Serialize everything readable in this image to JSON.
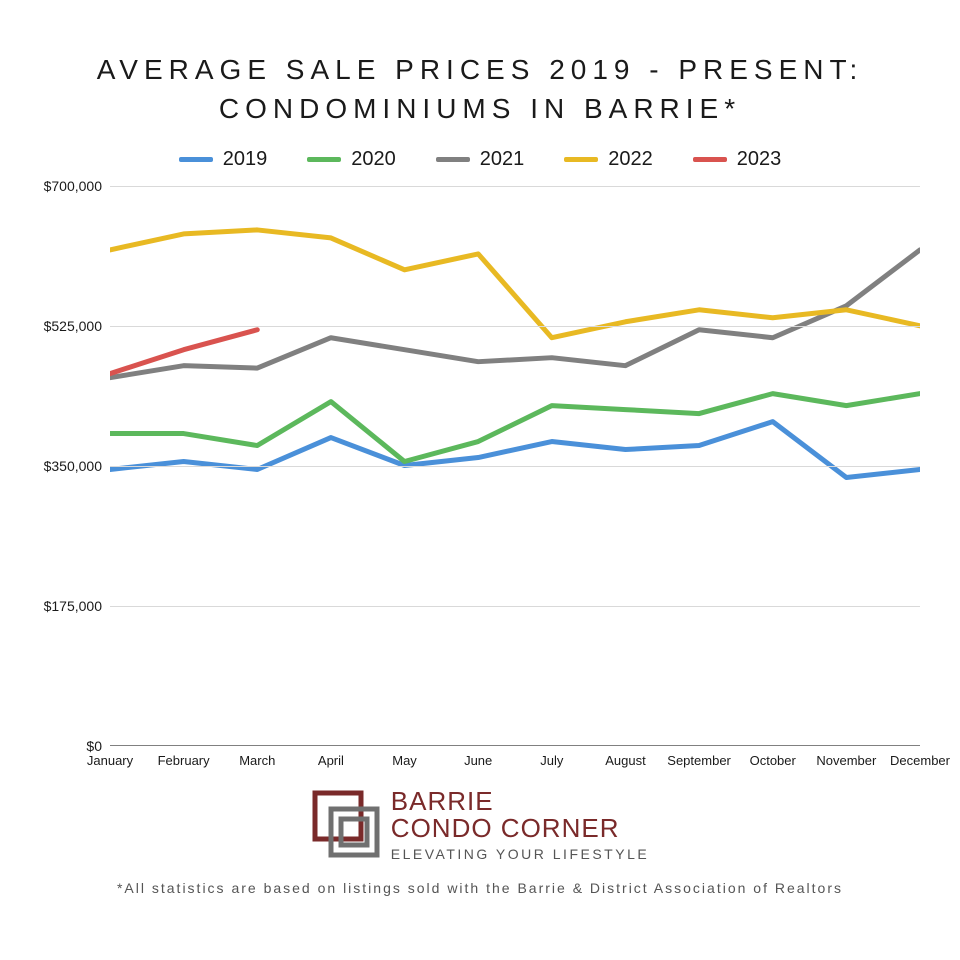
{
  "title_line1": "AVERAGE SALE PRICES 2019 - PRESENT:",
  "title_line2": "CONDOMINIUMS IN BARRIE*",
  "chart": {
    "type": "line",
    "background_color": "#ffffff",
    "grid_color": "#d9d9d9",
    "axis_color": "#808080",
    "title_fontsize": 28,
    "label_fontsize": 14,
    "line_width": 5,
    "x_categories": [
      "January",
      "February",
      "March",
      "April",
      "May",
      "June",
      "July",
      "August",
      "September",
      "October",
      "November",
      "December"
    ],
    "ylim": [
      0,
      700000
    ],
    "ytick_step": 175000,
    "yticks": [
      0,
      175000,
      350000,
      525000,
      700000
    ],
    "ytick_labels": [
      "$0",
      "$175,000",
      "$350,000",
      "$525,000",
      "$700,000"
    ],
    "series": [
      {
        "name": "2019",
        "color": "#4a90d9",
        "values": [
          345000,
          355000,
          345000,
          385000,
          350000,
          360000,
          380000,
          370000,
          375000,
          405000,
          335000,
          345000
        ]
      },
      {
        "name": "2020",
        "color": "#5cb85c",
        "values": [
          390000,
          390000,
          375000,
          430000,
          355000,
          380000,
          425000,
          420000,
          415000,
          440000,
          425000,
          440000
        ]
      },
      {
        "name": "2021",
        "color": "#808080",
        "values": [
          460000,
          475000,
          472000,
          510000,
          495000,
          480000,
          485000,
          475000,
          520000,
          510000,
          550000,
          620000
        ]
      },
      {
        "name": "2022",
        "color": "#e8b923",
        "values": [
          620000,
          640000,
          645000,
          635000,
          595000,
          615000,
          510000,
          530000,
          545000,
          535000,
          545000,
          525000
        ]
      },
      {
        "name": "2023",
        "color": "#d9534f",
        "values": [
          465000,
          495000,
          520000
        ]
      }
    ]
  },
  "legend_items": [
    {
      "label": "2019",
      "color": "#4a90d9"
    },
    {
      "label": "2020",
      "color": "#5cb85c"
    },
    {
      "label": "2021",
      "color": "#808080"
    },
    {
      "label": "2022",
      "color": "#e8b923"
    },
    {
      "label": "2023",
      "color": "#d9534f"
    }
  ],
  "logo": {
    "line1": "BARRIE",
    "line2": "CONDO CORNER",
    "line3": "ELEVATING YOUR LIFESTYLE",
    "accent_color": "#7a2a2a",
    "neutral_color": "#707070"
  },
  "footnote": "*All statistics are based on listings sold with the Barrie & District Association of Realtors"
}
